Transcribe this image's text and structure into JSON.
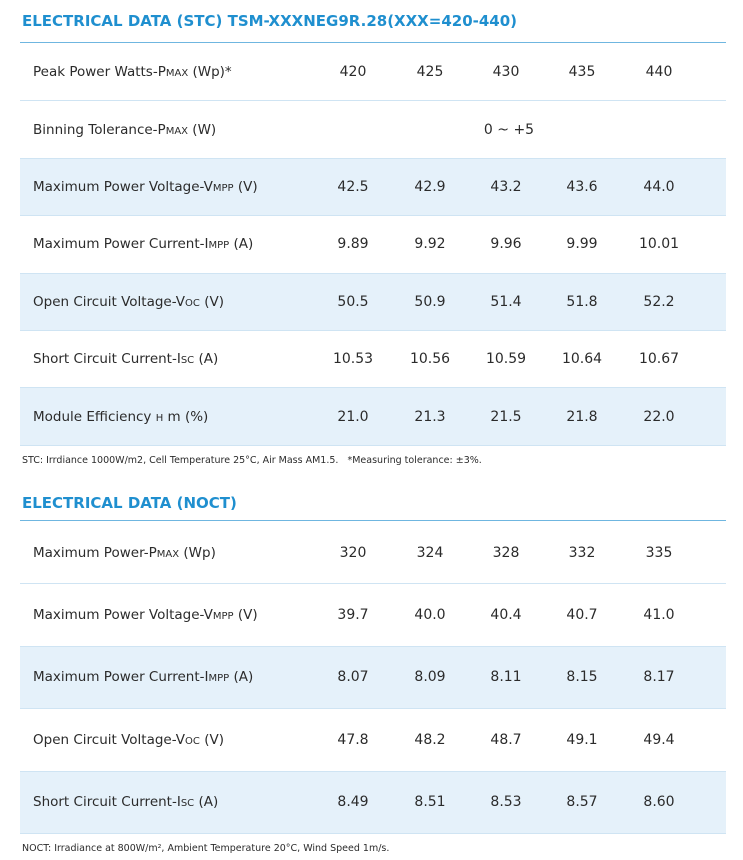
{
  "stc": {
    "title": "ELECTRICAL DATA (STC)  TSM-XXXNEG9R.28(XXX=420-440)",
    "rows": [
      {
        "label": [
          "Peak Power Watts-P",
          "MAX",
          " (Wp)*"
        ],
        "values": [
          "420",
          "425",
          "430",
          "435",
          "440"
        ]
      },
      {
        "label": [
          "Binning Tolerance-P",
          "MAX",
          " (W)"
        ],
        "values": [
          "0 ~ +5"
        ]
      },
      {
        "label": [
          "Maximum Power Voltage-V",
          "MPP",
          " (V)"
        ],
        "values": [
          "42.5",
          "42.9",
          "43.2",
          "43.6",
          "44.0"
        ]
      },
      {
        "label": [
          "Maximum Power Current-I",
          "MPP",
          " (A)"
        ],
        "values": [
          "9.89",
          "9.92",
          "9.96",
          "9.99",
          "10.01"
        ]
      },
      {
        "label": [
          "Open Circuit Voltage-V",
          "OC",
          " (V)"
        ],
        "values": [
          "50.5",
          "50.9",
          "51.4",
          "51.8",
          "52.2"
        ]
      },
      {
        "label": [
          "Short Circuit Current-I",
          "SC",
          " (A)"
        ],
        "values": [
          "10.53",
          "10.56",
          "10.59",
          "10.64",
          "10.67"
        ]
      },
      {
        "label": [
          "Module Efficiency ",
          "η",
          " m (%)"
        ],
        "values": [
          "21.0",
          "21.3",
          "21.5",
          "21.8",
          "22.0"
        ]
      }
    ],
    "note": "STC: Irrdiance 1000W/m2, Cell Temperature 25°C, Air Mass AM1.5.   *Measuring tolerance: ±3%."
  },
  "noct": {
    "title": "ELECTRICAL DATA (NOCT)",
    "rows": [
      {
        "label": [
          "Maximum Power-P",
          "MAX",
          " (Wp)"
        ],
        "values": [
          "320",
          "324",
          "328",
          "332",
          "335"
        ]
      },
      {
        "label": [
          "Maximum Power Voltage-V",
          "MPP",
          " (V)"
        ],
        "values": [
          "39.7",
          "40.0",
          "40.4",
          "40.7",
          "41.0"
        ]
      },
      {
        "label": [
          "Maximum Power Current-I",
          "MPP",
          " (A)"
        ],
        "values": [
          "8.07",
          "8.09",
          "8.11",
          "8.15",
          "8.17"
        ]
      },
      {
        "label": [
          "Open Circuit Voltage-V",
          "OC",
          " (V)"
        ],
        "values": [
          "47.8",
          "48.2",
          "48.7",
          "49.1",
          "49.4"
        ]
      },
      {
        "label": [
          "Short Circuit Current-I",
          "SC",
          " (A)"
        ],
        "values": [
          "8.49",
          "8.51",
          "8.53",
          "8.57",
          "8.60"
        ]
      }
    ],
    "note": "NOCT: Irradiance at 800W/m², Ambient Temperature 20°C, Wind Speed 1m/s."
  }
}
